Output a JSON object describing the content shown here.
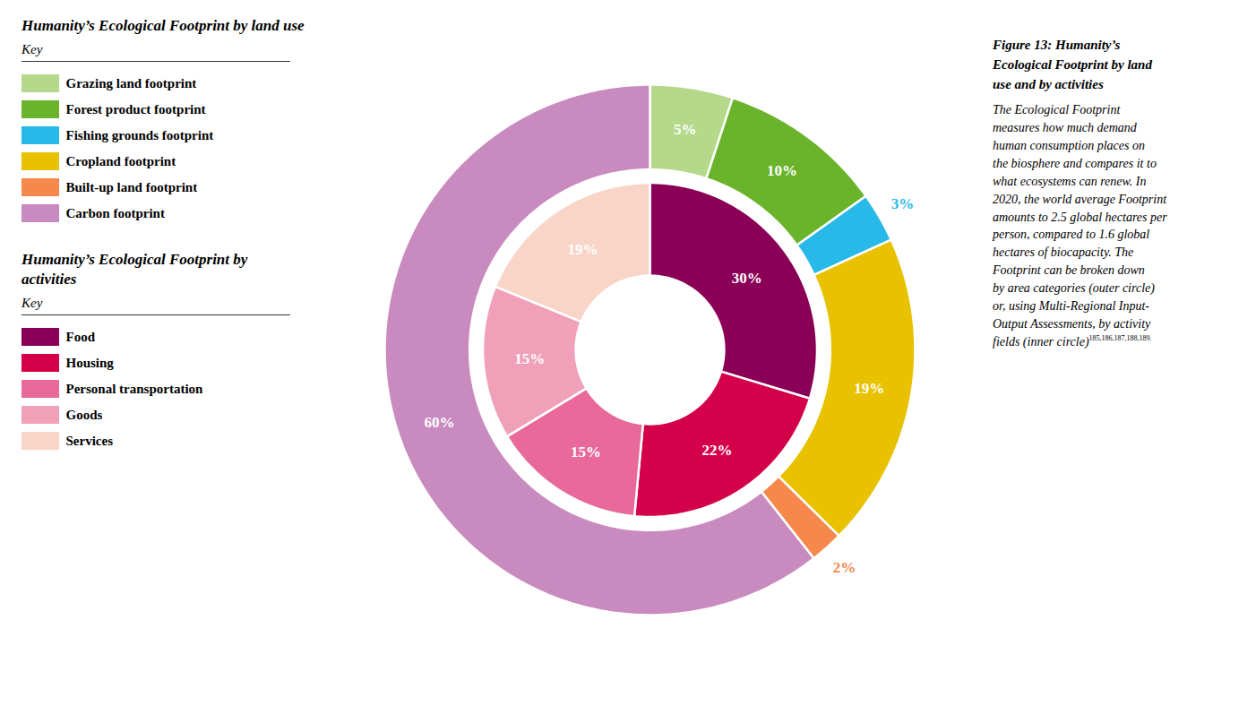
{
  "chart_data": [
    {
      "type": "pie",
      "title": "Humanity’s Ecological Footprint by land use",
      "subtitle": "Key",
      "categories": [
        "Grazing land footprint",
        "Forest product footprint",
        "Fishing grounds footprint",
        "Cropland footprint",
        "Built-up land footprint",
        "Carbon footprint"
      ],
      "values": [
        5,
        10,
        3,
        19,
        2,
        60
      ],
      "value_labels": [
        "5%",
        "10%",
        "3%",
        "19%",
        "2%",
        "60%"
      ],
      "colors": [
        "#b5d98b",
        "#6ab42b",
        "#29b9e8",
        "#e8c200",
        "#f5884a",
        "#c98bbf"
      ],
      "data_labels": true,
      "legend": "left",
      "caption_title": [
        "Figure 13: Humanity’s",
        "Ecological Footprint by land",
        "use and by activities"
      ],
      "caption": [
        "The Ecological Footprint",
        "measures how much demand",
        "human consumption places on",
        "the biosphere and compares it to",
        "what ecosystems can renew. In",
        "2020, the world average Footprint",
        "amounts to 2.5 global hectares per",
        "person, compared to 1.6 global",
        "hectares of biocapacity. The",
        "Footprint can be broken down",
        "by area categories (outer circle)",
        "or, using Multi-Regional Input-",
        "Output Assessments, by activity",
        "fields (inner circle)"
      ],
      "footnote": "185,186,187,188,189."
    },
    {
      "type": "pie",
      "title": "Humanity’s Ecological Footprint by activities",
      "subtitle": "Key",
      "categories": [
        "Food",
        "Housing",
        "Personal transportation",
        "Goods",
        "Services"
      ],
      "values": [
        30,
        22,
        15,
        15,
        19
      ],
      "value_labels": [
        "30%",
        "22%",
        "15%",
        "15%",
        "19%"
      ],
      "colors": [
        "#8b0057",
        "#d4004a",
        "#e8699a",
        "#f0a0b8",
        "#f9d5c8"
      ],
      "data_labels": true,
      "legend": "left"
    }
  ]
}
